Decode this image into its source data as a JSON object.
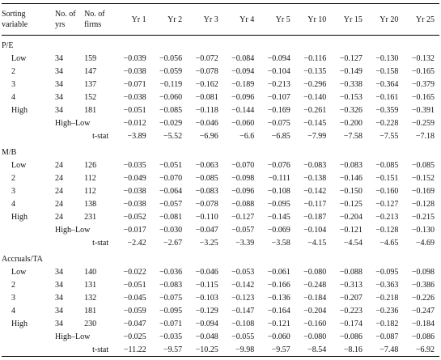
{
  "table": {
    "header": [
      [
        "Sorting",
        "variable"
      ],
      [
        "No. of",
        "yrs"
      ],
      [
        "No. of",
        "firms"
      ],
      [
        "Yr 1"
      ],
      [
        "Yr 2"
      ],
      [
        "Yr 3"
      ],
      [
        "Yr 4"
      ],
      [
        "Yr 5"
      ],
      [
        "Yr 10"
      ],
      [
        "Yr 15"
      ],
      [
        "Yr 20"
      ],
      [
        "Yr 25"
      ]
    ],
    "sections": [
      {
        "title": "P/E",
        "rows": [
          {
            "label": "Low",
            "yrs": "34",
            "firms": "159",
            "values": [
              "−0.039",
              "−0.056",
              "−0.072",
              "−0.084",
              "−0.094",
              "−0.116",
              "−0.127",
              "−0.130",
              "−0.132"
            ]
          },
          {
            "label": "2",
            "yrs": "34",
            "firms": "147",
            "values": [
              "−0.038",
              "−0.059",
              "−0.078",
              "−0.094",
              "−0.104",
              "−0.135",
              "−0.149",
              "−0.158",
              "−0.165"
            ]
          },
          {
            "label": "3",
            "yrs": "34",
            "firms": "137",
            "values": [
              "−0.071",
              "−0.119",
              "−0.162",
              "−0.189",
              "−0.213",
              "−0.296",
              "−0.338",
              "−0.364",
              "−0.379"
            ]
          },
          {
            "label": "4",
            "yrs": "34",
            "firms": "152",
            "values": [
              "−0.038",
              "−0.060",
              "−0.081",
              "−0.096",
              "−0.107",
              "−0.140",
              "−0.153",
              "−0.161",
              "−0.165"
            ]
          },
          {
            "label": "High",
            "yrs": "34",
            "firms": "181",
            "values": [
              "−0.051",
              "−0.085",
              "−0.118",
              "−0.144",
              "−0.169",
              "−0.261",
              "−0.326",
              "−0.359",
              "−0.391"
            ]
          }
        ],
        "diff": {
          "label": "High–Low",
          "values": [
            "−0.012",
            "−0.029",
            "−0.046",
            "−0.060",
            "−0.075",
            "−0.145",
            "−0.200",
            "−0.228",
            "−0.259"
          ]
        },
        "tstat": {
          "label": "t-stat",
          "values": [
            "−3.89",
            "−5.52",
            "−6.96",
            "−6.6",
            "−6.85",
            "−7.99",
            "−7.58",
            "−7.55",
            "−7.18"
          ]
        }
      },
      {
        "title": "M/B",
        "rows": [
          {
            "label": "Low",
            "yrs": "24",
            "firms": "126",
            "values": [
              "−0.035",
              "−0.051",
              "−0.063",
              "−0.070",
              "−0.076",
              "−0.083",
              "−0.083",
              "−0.085",
              "−0.085"
            ]
          },
          {
            "label": "2",
            "yrs": "24",
            "firms": "112",
            "values": [
              "−0.049",
              "−0.070",
              "−0.085",
              "−0.098",
              "−0.111",
              "−0.138",
              "−0.146",
              "−0.151",
              "−0.152"
            ]
          },
          {
            "label": "3",
            "yrs": "24",
            "firms": "112",
            "values": [
              "−0.038",
              "−0.064",
              "−0.083",
              "−0.096",
              "−0.108",
              "−0.142",
              "−0.150",
              "−0.160",
              "−0.169"
            ]
          },
          {
            "label": "4",
            "yrs": "24",
            "firms": "138",
            "values": [
              "−0.038",
              "−0.057",
              "−0.078",
              "−0.088",
              "−0.095",
              "−0.117",
              "−0.125",
              "−0.127",
              "−0.128"
            ]
          },
          {
            "label": "High",
            "yrs": "24",
            "firms": "231",
            "values": [
              "−0.052",
              "−0.081",
              "−0.110",
              "−0.127",
              "−0.145",
              "−0.187",
              "−0.204",
              "−0.213",
              "−0.215"
            ]
          }
        ],
        "diff": {
          "label": "High–Low",
          "values": [
            "−0.017",
            "−0.030",
            "−0.047",
            "−0.057",
            "−0.069",
            "−0.104",
            "−0.121",
            "−0.128",
            "−0.130"
          ]
        },
        "tstat": {
          "label": "t-stat",
          "values": [
            "−2.42",
            "−2.67",
            "−3.25",
            "−3.39",
            "−3.58",
            "−4.15",
            "−4.54",
            "−4.65",
            "−4.69"
          ]
        }
      },
      {
        "title": "Accruals/TA",
        "rows": [
          {
            "label": "Low",
            "yrs": "34",
            "firms": "140",
            "values": [
              "−0.022",
              "−0.036",
              "−0.046",
              "−0.053",
              "−0.061",
              "−0.080",
              "−0.088",
              "−0.095",
              "−0.098"
            ]
          },
          {
            "label": "2",
            "yrs": "34",
            "firms": "131",
            "values": [
              "−0.051",
              "−0.083",
              "−0.115",
              "−0.142",
              "−0.166",
              "−0.248",
              "−0.313",
              "−0.363",
              "−0.386"
            ]
          },
          {
            "label": "3",
            "yrs": "34",
            "firms": "132",
            "values": [
              "−0.045",
              "−0.075",
              "−0.103",
              "−0.123",
              "−0.136",
              "−0.184",
              "−0.207",
              "−0.218",
              "−0.226"
            ]
          },
          {
            "label": "4",
            "yrs": "34",
            "firms": "181",
            "values": [
              "−0.059",
              "−0.095",
              "−0.129",
              "−0.147",
              "−0.164",
              "−0.204",
              "−0.223",
              "−0.236",
              "−0.247"
            ]
          },
          {
            "label": "High",
            "yrs": "34",
            "firms": "230",
            "values": [
              "−0.047",
              "−0.071",
              "−0.094",
              "−0.108",
              "−0.121",
              "−0.160",
              "−0.174",
              "−0.182",
              "−0.184"
            ]
          }
        ],
        "diff": {
          "label": "High–Low",
          "values": [
            "−0.025",
            "−0.035",
            "−0.048",
            "−0.055",
            "−0.060",
            "−0.080",
            "−0.086",
            "−0.087",
            "−0.086"
          ]
        },
        "tstat": {
          "label": "t-stat",
          "values": [
            "−11.22",
            "−9.57",
            "−10.25",
            "−9.98",
            "−9.57",
            "−8.54",
            "−8.16",
            "−7.48",
            "−6.92"
          ]
        }
      }
    ]
  }
}
